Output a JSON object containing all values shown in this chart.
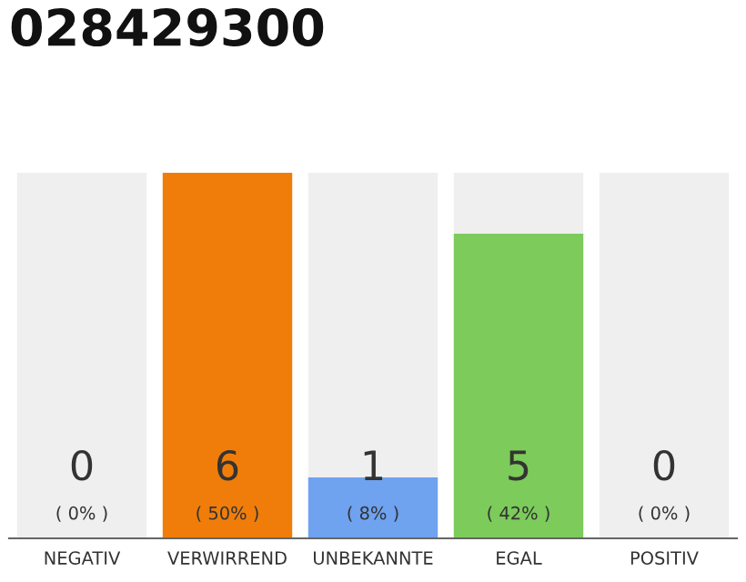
{
  "chart_data": {
    "type": "bar",
    "title": "028429300",
    "categories": [
      "NEGATIV",
      "VERWIRREND",
      "UNBEKANNTE",
      "EGAL",
      "POSITIV"
    ],
    "series": [
      {
        "colors": [
          "#f07d0a",
          "#f07d0a",
          "#6fa2ef",
          "#7ccb5b",
          "#7ccb5b"
        ],
        "values": [
          0,
          6,
          1,
          5,
          0
        ],
        "value_labels": [
          "0\n( 0% )",
          "6\n( 50% )",
          "1\n( 8% )",
          "5\n( 42% )",
          "0\n( 0% )"
        ]
      }
    ],
    "bands": [
      {
        "axis": "x",
        "from": "NEGATIV",
        "to": "NEGATIV",
        "color": "#efefef"
      },
      {
        "axis": "x",
        "from": "UNBEKANNTE",
        "to": "UNBEKANNTE",
        "color": "#efefef"
      },
      {
        "axis": "x",
        "from": "EGAL",
        "to": "EGAL",
        "color": "#efefef"
      },
      {
        "axis": "x",
        "from": "POSITIV",
        "to": "POSITIV",
        "color": "#efefef"
      }
    ],
    "grid": false,
    "legend": false
  }
}
